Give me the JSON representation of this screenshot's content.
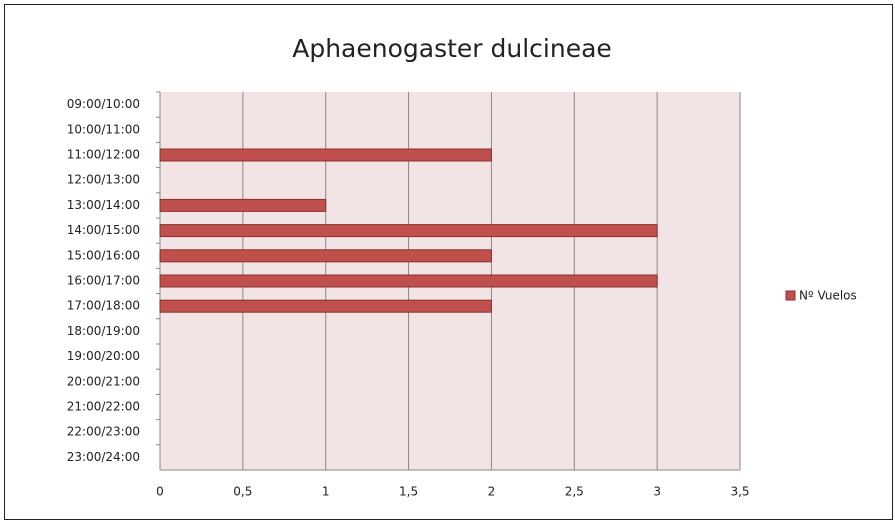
{
  "chart_data": {
    "type": "bar",
    "orientation": "horizontal",
    "title": "Aphaenogaster dulcineae",
    "categories": [
      "09:00/10:00",
      "10:00/11:00",
      "11:00/12:00",
      "12:00/13:00",
      "13:00/14:00",
      "14:00/15:00",
      "15:00/16:00",
      "16:00/17:00",
      "17:00/18:00",
      "18:00/19:00",
      "19:00/20:00",
      "20:00/21:00",
      "21:00/22:00",
      "22:00/23:00",
      "23:00/24:00"
    ],
    "series": [
      {
        "name": "Nº Vuelos",
        "color": "#c0504d",
        "values": [
          0,
          0,
          2,
          0,
          1,
          3,
          2,
          3,
          2,
          0,
          0,
          0,
          0,
          0,
          0
        ]
      }
    ],
    "xlim": [
      0,
      3.5
    ],
    "xticks": [
      0,
      {
        "value": 0.5,
        "label": "0,5"
      },
      1,
      {
        "value": 1.5,
        "label": "1,5"
      },
      2,
      {
        "value": 2.5,
        "label": "2,5"
      },
      3,
      {
        "value": 3.5,
        "label": "3,5"
      }
    ],
    "grid": true,
    "legend": "right"
  }
}
